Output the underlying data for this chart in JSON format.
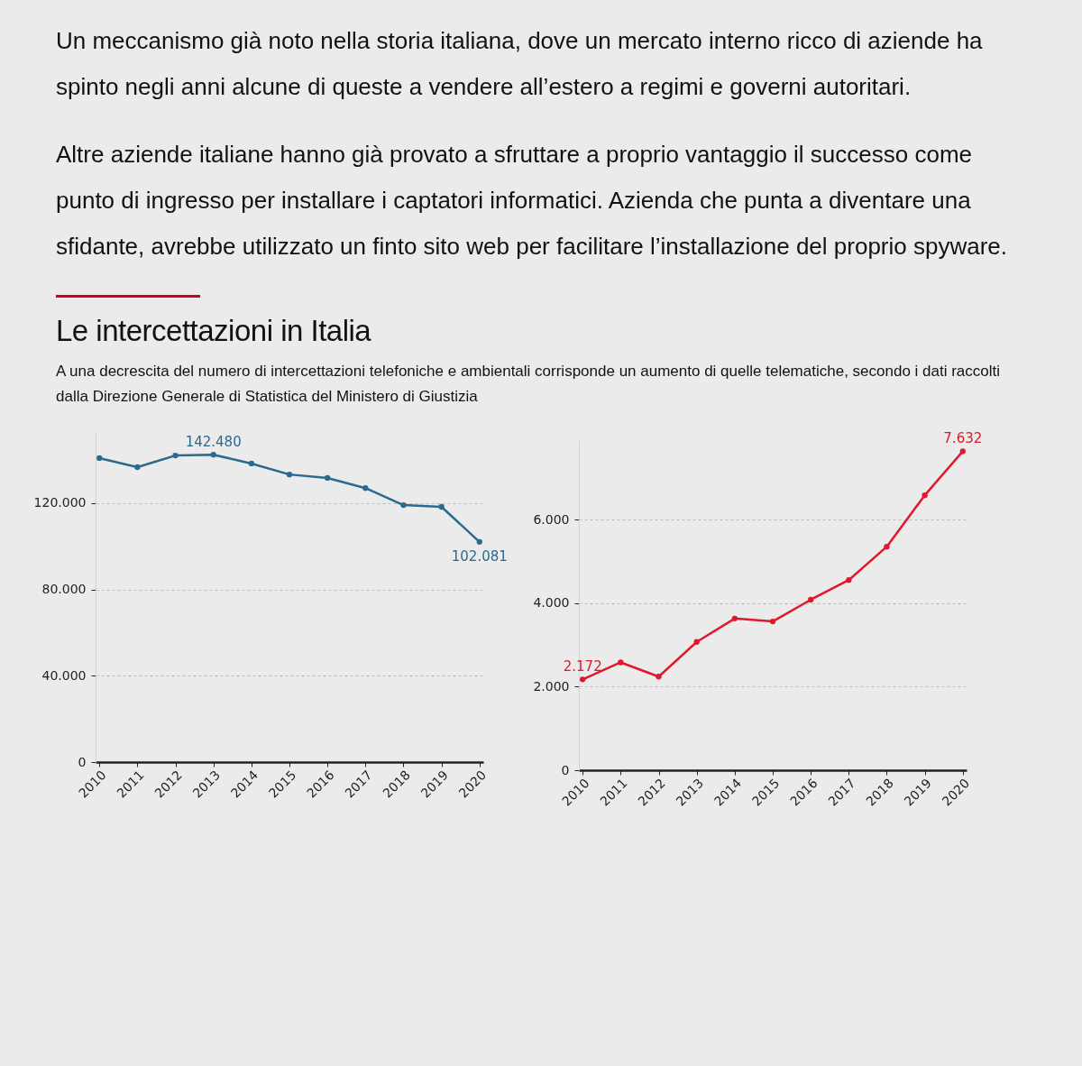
{
  "chart_data": [
    {
      "type": "line",
      "title": "Le intercettazioni in Italia",
      "subtitle": "A una decrescita del numero di intercettazioni telefoniche e ambientali corrisponde un aumento di quelle telematiche, secondo i dati raccolti dalla Direzione Generale di Statistica del Ministero di Giustizia",
      "annotations": [
        "Un meccanismo già noto nella storia italiana, dove un mercato interno ricco di aziende ha spinto negli anni alcune di queste a vendere all’estero a regimi e governi autoritari.",
        "Altre aziende italiane hanno già provato a sfruttare a proprio vantaggio il successo come punto di ingresso per installare i captatori informatici. Azienda che punta a diventare una sfidante, avrebbe utilizzato un finto sito web per facilitare l’installazione del proprio spyware."
      ],
      "categories": [
        "2010",
        "2011",
        "2012",
        "2013",
        "2014",
        "2015",
        "2016",
        "2017",
        "2018",
        "2019",
        "2020"
      ],
      "series": [
        {
          "color": "#2a6a8f",
          "values": [
            140900,
            136700,
            142100,
            142480,
            138400,
            133300,
            131700,
            127000,
            119100,
            118300,
            102081
          ],
          "value_labels": [
            null,
            null,
            null,
            "142.480",
            null,
            null,
            null,
            null,
            null,
            null,
            "102.081"
          ]
        }
      ],
      "ylim": [
        0,
        153000
      ],
      "yticks": [
        0,
        {
          "value": 40000,
          "label": "40.000"
        },
        {
          "value": 80000,
          "label": "80.000"
        },
        {
          "value": 120000,
          "label": "120.000"
        }
      ],
      "grid": "y",
      "marker": "circle",
      "line_style": "solid"
    },
    {
      "type": "line",
      "categories": [
        "2010",
        "2011",
        "2012",
        "2013",
        "2014",
        "2015",
        "2016",
        "2017",
        "2018",
        "2019",
        "2020"
      ],
      "series": [
        {
          "color": "#e0182d",
          "values": [
            2172,
            2580,
            2240,
            3070,
            3630,
            3560,
            4080,
            4550,
            5350,
            6580,
            7632
          ],
          "value_labels": [
            "2.172",
            null,
            null,
            null,
            null,
            null,
            null,
            null,
            null,
            null,
            "7.632"
          ]
        }
      ],
      "ylim": [
        0,
        7900
      ],
      "yticks": [
        0,
        {
          "value": 2000,
          "label": "2.000"
        },
        {
          "value": 4000,
          "label": "4.000"
        },
        {
          "value": 6000,
          "label": "6.000"
        }
      ],
      "grid": "y",
      "marker": "circle",
      "line_style": "solid"
    }
  ]
}
